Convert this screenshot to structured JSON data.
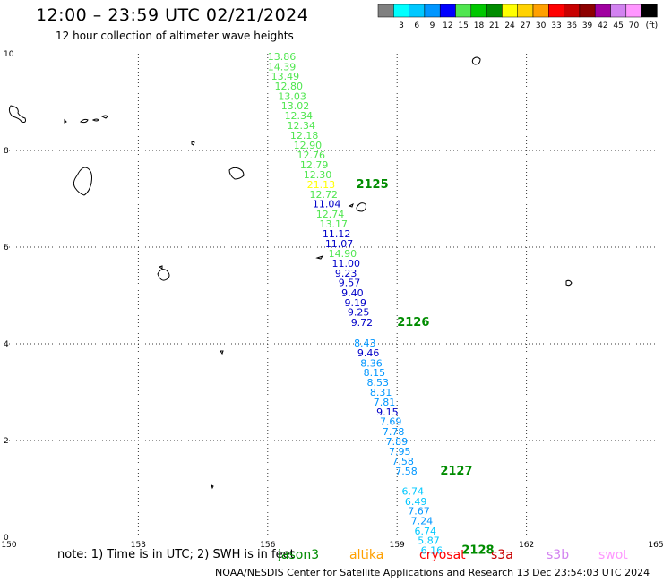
{
  "header": {
    "title": "12:00 – 23:59 UTC 02/21/2024",
    "subtitle": "12 hour collection of altimeter wave heights"
  },
  "colorbar": {
    "unit": "(ft)",
    "bins": [
      {
        "label": "",
        "color": "#808080"
      },
      {
        "label": "3",
        "color": "#00ffff"
      },
      {
        "label": "6",
        "color": "#00c8ff"
      },
      {
        "label": "9",
        "color": "#0096ff"
      },
      {
        "label": "12",
        "color": "#0000ff"
      },
      {
        "label": "15",
        "color": "#50e650"
      },
      {
        "label": "18",
        "color": "#00c800"
      },
      {
        "label": "21",
        "color": "#008c00"
      },
      {
        "label": "24",
        "color": "#ffff00"
      },
      {
        "label": "27",
        "color": "#ffd200"
      },
      {
        "label": "30",
        "color": "#ffa000"
      },
      {
        "label": "33",
        "color": "#ff0000"
      },
      {
        "label": "36",
        "color": "#c80000"
      },
      {
        "label": "39",
        "color": "#8c0000"
      },
      {
        "label": "42",
        "color": "#a000a0"
      },
      {
        "label": "45",
        "color": "#d282f0"
      },
      {
        "label": "70",
        "color": "#ff96ff"
      },
      {
        "label": "",
        "color": "#000000"
      }
    ]
  },
  "map": {
    "lon_range": [
      150,
      165
    ],
    "lat_range": [
      0,
      10
    ],
    "x_ticks": [
      "150",
      "153",
      "156",
      "159",
      "162",
      "165"
    ],
    "y_ticks": [
      "0",
      "2",
      "4",
      "6",
      "8",
      "10"
    ],
    "observations": [
      {
        "lon": 156.0,
        "lat": 9.87,
        "value": "13.86",
        "color": "#50e650"
      },
      {
        "lon": 156.0,
        "lat": 9.66,
        "value": "14.39",
        "color": "#50e650"
      },
      {
        "lon": 156.08,
        "lat": 9.46,
        "value": "13.49",
        "color": "#50e650"
      },
      {
        "lon": 156.16,
        "lat": 9.26,
        "value": "12.80",
        "color": "#50e650"
      },
      {
        "lon": 156.24,
        "lat": 9.05,
        "value": "13.03",
        "color": "#50e650"
      },
      {
        "lon": 156.31,
        "lat": 8.85,
        "value": "13.02",
        "color": "#50e650"
      },
      {
        "lon": 156.39,
        "lat": 8.65,
        "value": "12.34",
        "color": "#50e650"
      },
      {
        "lon": 156.45,
        "lat": 8.44,
        "value": "12.34",
        "color": "#50e650"
      },
      {
        "lon": 156.52,
        "lat": 8.24,
        "value": "12.18",
        "color": "#50e650"
      },
      {
        "lon": 156.6,
        "lat": 8.04,
        "value": "12.90",
        "color": "#50e650"
      },
      {
        "lon": 156.68,
        "lat": 7.83,
        "value": "12.76",
        "color": "#50e650"
      },
      {
        "lon": 156.75,
        "lat": 7.63,
        "value": "12.79",
        "color": "#50e650"
      },
      {
        "lon": 156.83,
        "lat": 7.43,
        "value": "12.30",
        "color": "#50e650"
      },
      {
        "lon": 156.91,
        "lat": 7.22,
        "value": "21.13",
        "color": "#ffff00"
      },
      {
        "lon": 156.97,
        "lat": 7.02,
        "value": "12.72",
        "color": "#50e650"
      },
      {
        "lon": 157.04,
        "lat": 6.82,
        "value": "11.04",
        "color": "#0000c8"
      },
      {
        "lon": 157.12,
        "lat": 6.61,
        "value": "12.74",
        "color": "#50e650"
      },
      {
        "lon": 157.2,
        "lat": 6.41,
        "value": "13.17",
        "color": "#50e650"
      },
      {
        "lon": 157.27,
        "lat": 6.2,
        "value": "11.12",
        "color": "#0000c8"
      },
      {
        "lon": 157.33,
        "lat": 6.0,
        "value": "11.07",
        "color": "#0000c8"
      },
      {
        "lon": 157.41,
        "lat": 5.8,
        "value": "14.90",
        "color": "#50e650"
      },
      {
        "lon": 157.49,
        "lat": 5.59,
        "value": "11.00",
        "color": "#0000c8"
      },
      {
        "lon": 157.56,
        "lat": 5.39,
        "value": "9.23",
        "color": "#0000c8"
      },
      {
        "lon": 157.64,
        "lat": 5.19,
        "value": "9.57",
        "color": "#0000c8"
      },
      {
        "lon": 157.71,
        "lat": 4.98,
        "value": "9.40",
        "color": "#0000c8"
      },
      {
        "lon": 157.78,
        "lat": 4.78,
        "value": "9.19",
        "color": "#0000c8"
      },
      {
        "lon": 157.85,
        "lat": 4.58,
        "value": "9.25",
        "color": "#0000c8"
      },
      {
        "lon": 157.93,
        "lat": 4.37,
        "value": "9.72",
        "color": "#0000c8"
      },
      {
        "lon": 158.0,
        "lat": 3.94,
        "value": "8.43",
        "color": "#0096ff"
      },
      {
        "lon": 158.08,
        "lat": 3.74,
        "value": "9.46",
        "color": "#0000c8"
      },
      {
        "lon": 158.15,
        "lat": 3.53,
        "value": "8.36",
        "color": "#0096ff"
      },
      {
        "lon": 158.22,
        "lat": 3.33,
        "value": "8.15",
        "color": "#0096ff"
      },
      {
        "lon": 158.3,
        "lat": 3.13,
        "value": "8.53",
        "color": "#0096ff"
      },
      {
        "lon": 158.37,
        "lat": 2.93,
        "value": "8.31",
        "color": "#0096ff"
      },
      {
        "lon": 158.45,
        "lat": 2.72,
        "value": "7.81",
        "color": "#0096ff"
      },
      {
        "lon": 158.52,
        "lat": 2.52,
        "value": "9.15",
        "color": "#0000c8"
      },
      {
        "lon": 158.6,
        "lat": 2.32,
        "value": "7.69",
        "color": "#0096ff"
      },
      {
        "lon": 158.66,
        "lat": 2.11,
        "value": "7.78",
        "color": "#0096ff"
      },
      {
        "lon": 158.74,
        "lat": 1.91,
        "value": "7.89",
        "color": "#0096ff"
      },
      {
        "lon": 158.81,
        "lat": 1.7,
        "value": "7.95",
        "color": "#0096ff"
      },
      {
        "lon": 158.88,
        "lat": 1.5,
        "value": "7.58",
        "color": "#0096ff"
      },
      {
        "lon": 158.96,
        "lat": 1.3,
        "value": "7.58",
        "color": "#0096ff"
      },
      {
        "lon": 159.11,
        "lat": 0.88,
        "value": "6.74",
        "color": "#00c8ff"
      },
      {
        "lon": 159.18,
        "lat": 0.67,
        "value": "6.49",
        "color": "#00c8ff"
      },
      {
        "lon": 159.25,
        "lat": 0.47,
        "value": "7.67",
        "color": "#0096ff"
      },
      {
        "lon": 159.32,
        "lat": 0.27,
        "value": "7.24",
        "color": "#0096ff"
      },
      {
        "lon": 159.4,
        "lat": 0.06,
        "value": "6.74",
        "color": "#00c8ff"
      },
      {
        "lon": 159.48,
        "lat": -0.14,
        "value": "5.87",
        "color": "#00c8ff"
      },
      {
        "lon": 159.55,
        "lat": -0.34,
        "value": "6.16",
        "color": "#00c8ff"
      }
    ],
    "time_marks": [
      {
        "lon": 158.05,
        "lat": 7.22,
        "label": "2125"
      },
      {
        "lon": 159.0,
        "lat": 4.37,
        "label": "2126"
      },
      {
        "lon": 160.0,
        "lat": 1.3,
        "label": "2127"
      },
      {
        "lon": 160.5,
        "lat": -0.34,
        "label": "2128"
      }
    ],
    "time_mark_color": "#008c00"
  },
  "notes": {
    "note_text": "note:  1) Time is in UTC; 2) SWH is in feet",
    "footer_text": "NOAA/NESDIS Center for Satellite Applications and Research    13 Dec 23:54:03 UTC 2024"
  },
  "satellites": [
    {
      "name": "jason3",
      "color": "#008c00"
    },
    {
      "name": "altika",
      "color": "#ffa000"
    },
    {
      "name": "cryosat",
      "color": "#ff0000"
    },
    {
      "name": "s3a",
      "color": "#c80000"
    },
    {
      "name": "s3b",
      "color": "#d282f0"
    },
    {
      "name": "swot",
      "color": "#ff96ff"
    }
  ]
}
